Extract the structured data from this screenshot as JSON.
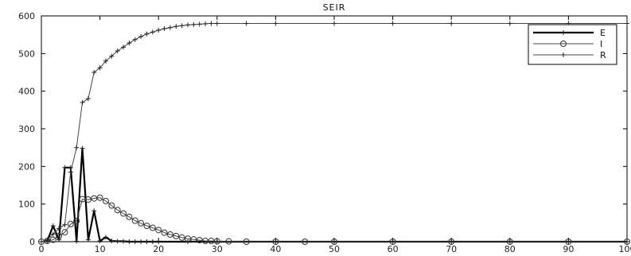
{
  "chart_data": {
    "type": "line",
    "title": "SEIR",
    "xlabel": "",
    "ylabel": "",
    "xlim": [
      0,
      100
    ],
    "ylim": [
      0,
      600
    ],
    "xticks": [
      0,
      10,
      20,
      30,
      40,
      50,
      60,
      70,
      80,
      90,
      100
    ],
    "xtick_labels": [
      "0",
      "10",
      "20",
      "30",
      "40",
      "50",
      "60",
      "70",
      "80",
      "90",
      "100"
    ],
    "yticks": [
      0,
      100,
      200,
      300,
      400,
      500,
      600
    ],
    "ytick_labels": [
      "0",
      "100",
      "200",
      "300",
      "400",
      "500",
      "600"
    ],
    "grid": false,
    "legend_position": "top-right",
    "series": [
      {
        "name": "E",
        "marker": "plus",
        "line_width": "thick",
        "x": [
          1,
          2,
          3,
          4,
          5,
          6,
          7,
          8,
          9,
          10,
          11,
          12,
          13,
          14,
          15,
          16,
          17,
          18,
          19,
          20,
          25,
          30,
          40,
          50,
          60,
          70,
          80,
          90,
          100
        ],
        "y": [
          2,
          42,
          5,
          197,
          197,
          1,
          248,
          5,
          82,
          2,
          12,
          2,
          1,
          1,
          0,
          0,
          0,
          0,
          0,
          0,
          0,
          0,
          0,
          0,
          0,
          0,
          0,
          0,
          0
        ]
      },
      {
        "name": "I",
        "marker": "circle",
        "line_width": "thin",
        "x": [
          0,
          1,
          2,
          3,
          4,
          5,
          6,
          7,
          8,
          9,
          10,
          11,
          12,
          13,
          14,
          15,
          16,
          17,
          18,
          19,
          20,
          21,
          22,
          23,
          24,
          25,
          26,
          27,
          28,
          29,
          30,
          32,
          35,
          40,
          45,
          50,
          60,
          70,
          80,
          90,
          100
        ],
        "y": [
          0,
          2,
          5,
          15,
          25,
          47,
          55,
          113,
          112,
          115,
          117,
          108,
          96,
          84,
          75,
          66,
          56,
          49,
          42,
          37,
          31,
          24,
          19,
          15,
          11,
          8,
          6,
          4,
          2,
          2,
          1,
          1,
          0,
          0,
          0,
          0,
          0,
          0,
          0,
          0,
          0
        ]
      },
      {
        "name": "R",
        "marker": "plus",
        "line_width": "thin",
        "x": [
          0,
          1,
          2,
          3,
          4,
          5,
          6,
          7,
          8,
          9,
          10,
          11,
          12,
          13,
          14,
          15,
          16,
          17,
          18,
          19,
          20,
          21,
          22,
          23,
          24,
          25,
          26,
          27,
          28,
          29,
          30,
          35,
          40,
          50,
          60,
          70,
          80,
          90,
          100
        ],
        "y": [
          0,
          5,
          20,
          35,
          45,
          185,
          250,
          370,
          380,
          450,
          462,
          480,
          493,
          507,
          517,
          528,
          537,
          545,
          552,
          557,
          562,
          566,
          569,
          572,
          574,
          576,
          577,
          578,
          579,
          580,
          580,
          580,
          580,
          580,
          580,
          580,
          580,
          580,
          580
        ]
      }
    ]
  }
}
